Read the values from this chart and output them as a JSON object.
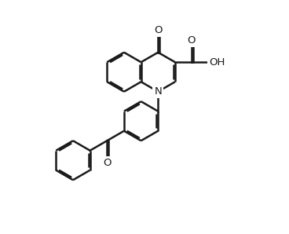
{
  "bg": "#ffffff",
  "lc": "#1a1a1a",
  "lw": 1.8,
  "dbo": 0.055,
  "fs": 9.5,
  "r": 0.72,
  "xlim": [
    0.0,
    9.5
  ],
  "ylim": [
    0.5,
    9.0
  ],
  "fig_w": 3.68,
  "fig_h": 2.98
}
